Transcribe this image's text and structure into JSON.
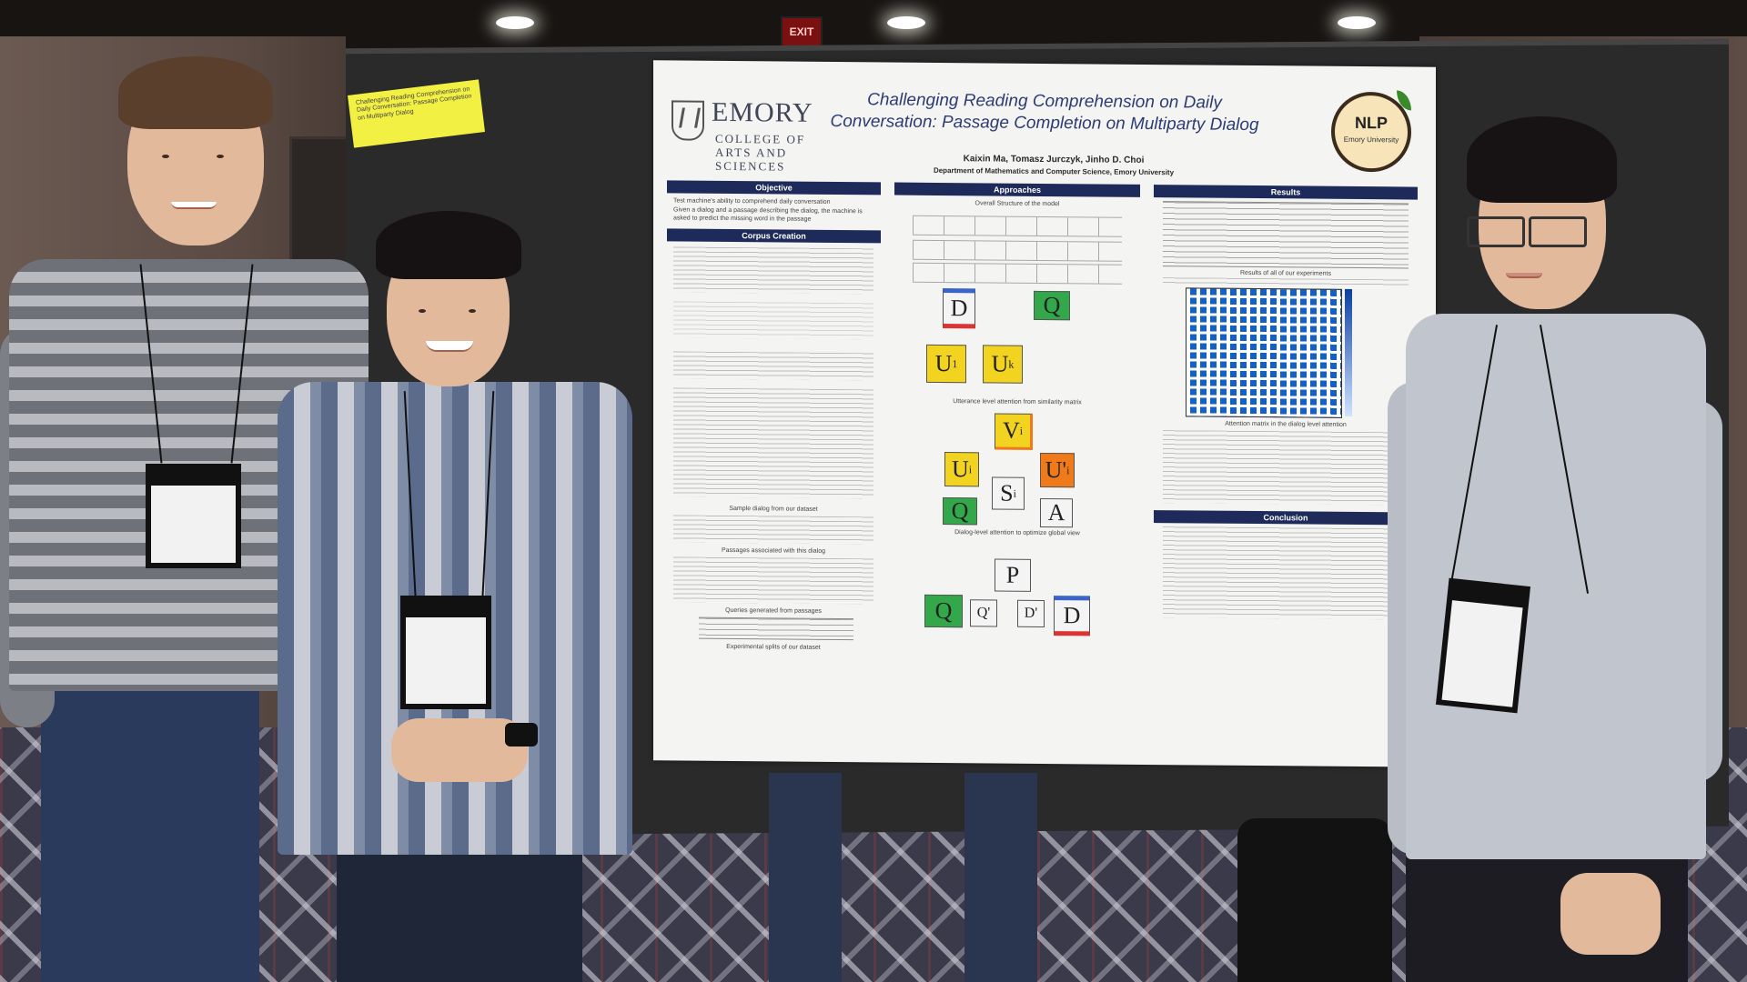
{
  "scene": {
    "exit_sign": "EXIT",
    "sticky_note": "Challenging Reading Comprehension on Daily Conversation: Passage Completion on Multiparty Dialog"
  },
  "poster": {
    "logo_emory": "EMORY",
    "logo_college": "COLLEGE OF ARTS AND SCIENCES",
    "title": "Challenging Reading Comprehension on Daily Conversation: Passage Completion on Multiparty Dialog",
    "authors": "Kaixin Ma, Tomasz Jurczyk, Jinho D. Choi",
    "department": "Department of Mathematics and Computer Science, Emory University",
    "nlp_logo": "NLP",
    "nlp_logo_sub": "Emory University",
    "sections": {
      "objective": "Objective",
      "corpus_creation": "Corpus Creation",
      "approaches": "Approaches",
      "results": "Results",
      "conclusion": "Conclusion"
    },
    "objective_bullets": [
      "Test machine's ability to comprehend daily conversation",
      "Given a dialog and a passage describing the dialog, the machine is asked to predict the missing word in the passage"
    ],
    "approaches_caption_1": "Overall Structure of the model",
    "approaches_caption_2": "Utterance level attention from similarity matrix",
    "approaches_caption_3": "Dialog-level attention to optimize global view",
    "results_caption": "Results of all of our experiments",
    "heatmap_caption": "Attention matrix in the dialog level attention",
    "corpus_caption_1": "Sample dialog from our dataset",
    "corpus_caption_2": "Passages associated with this dialog",
    "corpus_caption_3": "Queries generated from passages",
    "corpus_caption_4": "Experimental splits of our dataset",
    "symbols": {
      "d": "D",
      "q": "Q",
      "u1": "U",
      "u1_sub": "1",
      "uk": "U",
      "uk_sub": "k",
      "vi": "V",
      "vi_sub": "i",
      "ui": "U",
      "ui_sub": "i",
      "ui_prime": "U'",
      "ui_prime_sub": "i",
      "si": "S",
      "si_sub": "i",
      "a": "A",
      "p": "P",
      "q_prime": "Q'",
      "d_prime": "D'"
    }
  },
  "colors": {
    "header_navy": "#1e2a5a",
    "title_blue": "#2c3b73",
    "box_yellow": "#f2d320",
    "box_green": "#33a84a",
    "box_orange": "#f07a1a",
    "heatmap_blue": "#1560c4"
  }
}
